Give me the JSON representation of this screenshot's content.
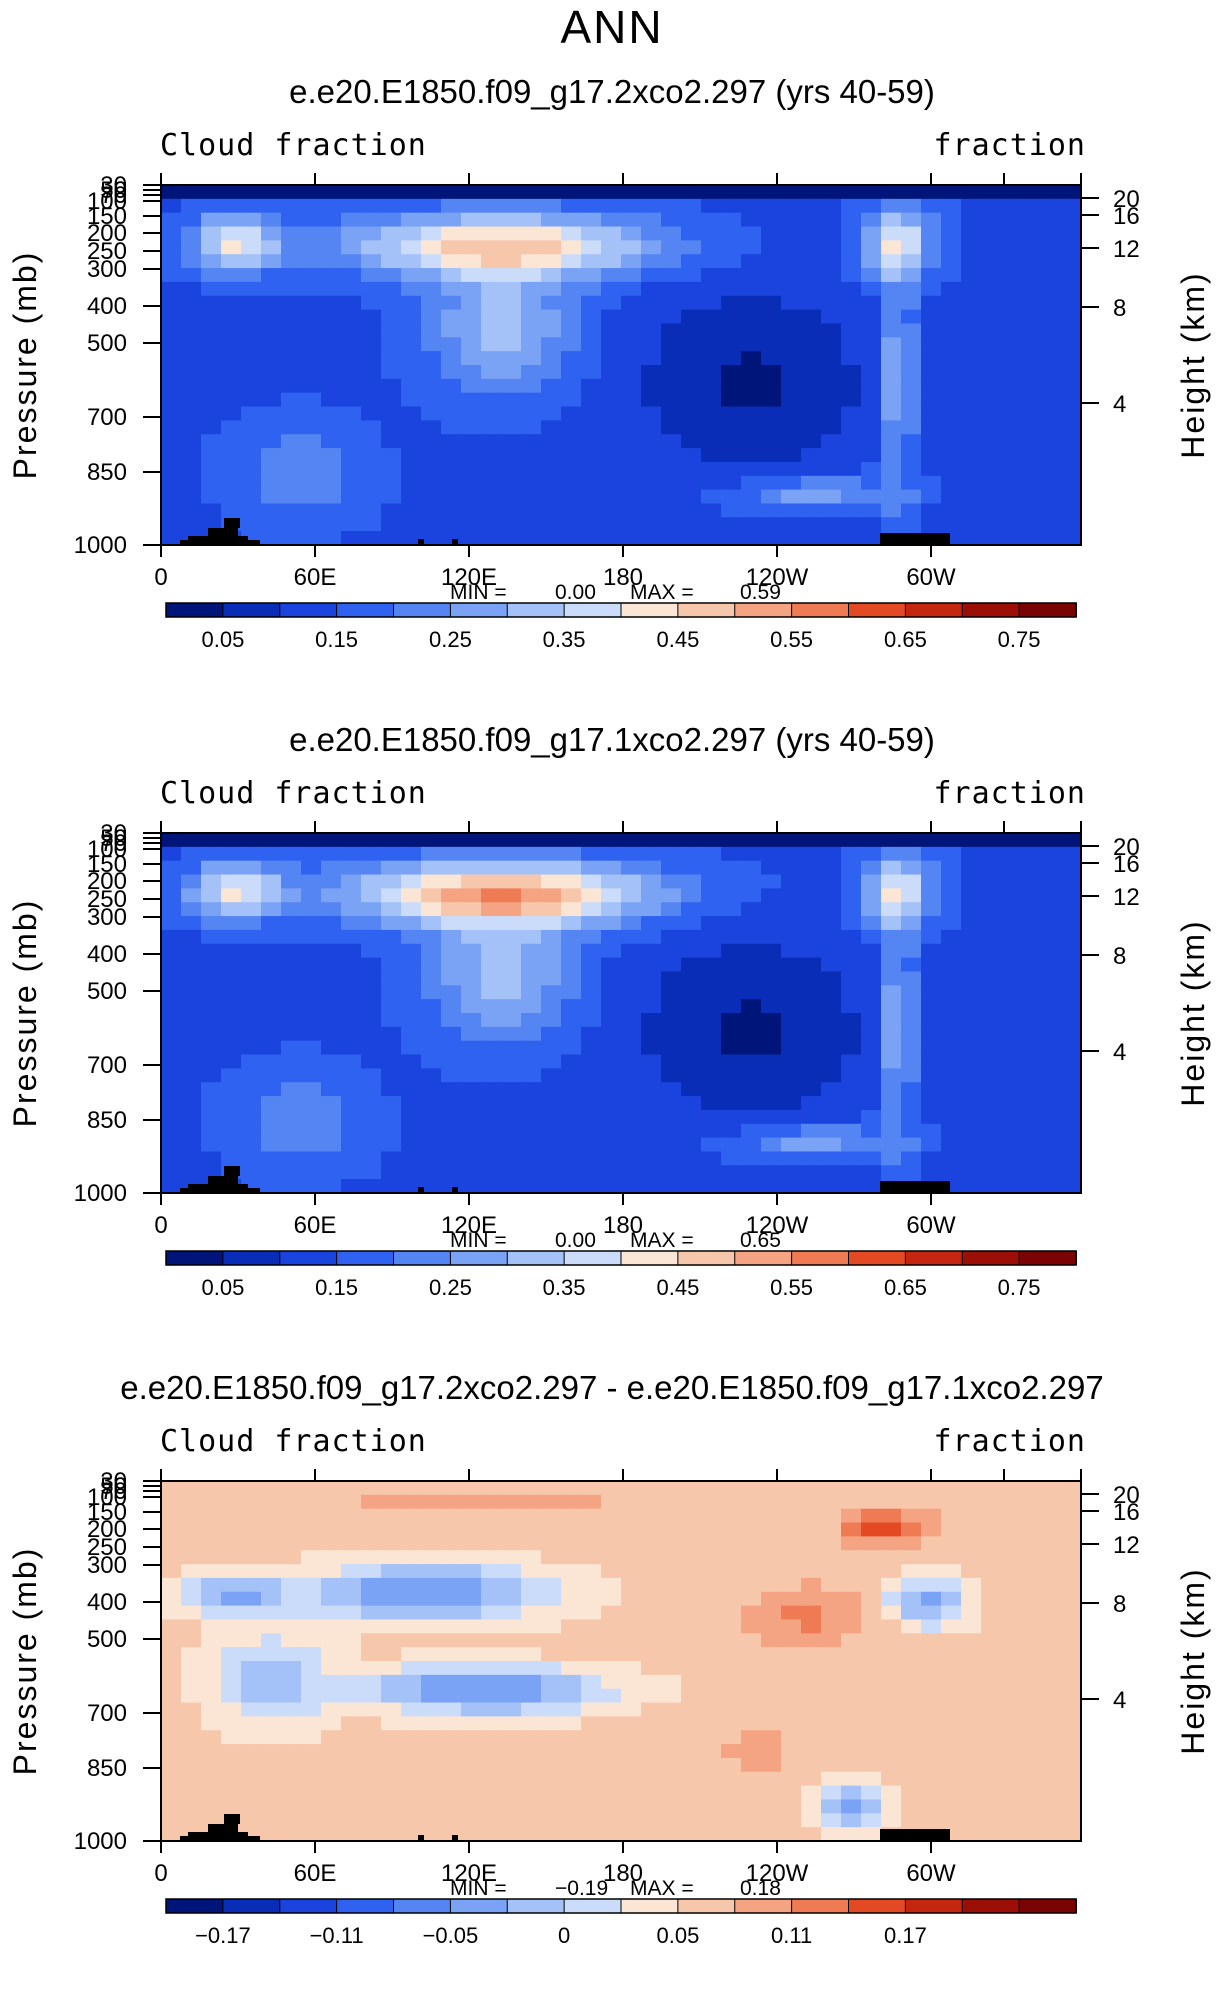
{
  "page": {
    "title": "ANN"
  },
  "chart_data": [
    {
      "type": "heatmap",
      "title": "e.e20.E1850.f09_g17.2xco2.297 (yrs 40-59)",
      "label_left": "Cloud fraction",
      "label_right": "fraction",
      "ylabel": "Pressure  (mb)",
      "y2label": "Height  (km)",
      "x_ticks": [
        "0",
        "60E",
        "120E",
        "180",
        "120W",
        "60W"
      ],
      "y_ticks": [
        "30",
        "50",
        "70",
        "100",
        "150",
        "200",
        "250",
        "300",
        "400",
        "500",
        "700",
        "850",
        "1000"
      ],
      "y2_ticks": [
        "20",
        "16",
        "12",
        "8",
        "4"
      ],
      "min_label": "MIN =",
      "min_value": "0.00",
      "max_label": "MAX =",
      "max_value": "0.59",
      "colorbar_labels": [
        "0.05",
        "0.15",
        "0.25",
        "0.35",
        "0.45",
        "0.55",
        "0.65",
        "0.75"
      ],
      "levels": [
        "0.05",
        "0.1",
        "0.15",
        "0.2",
        "0.25",
        "0.3",
        "0.35",
        "0.4",
        "0.45",
        "0.5",
        "0.55",
        "0.6",
        "0.65",
        "0.7",
        "0.75"
      ],
      "colors": [
        "#00157a",
        "#0a2db8",
        "#1a44dd",
        "#2f62f0",
        "#5585f2",
        "#7ba3f5",
        "#a4c2f8",
        "#cadcfa",
        "#fbe5d5",
        "#f7c7ab",
        "#f4a482",
        "#ef7b55",
        "#e34a23",
        "#c4260f",
        "#9c0f07",
        "#7a0303"
      ]
    },
    {
      "type": "heatmap",
      "title": "e.e20.E1850.f09_g17.1xco2.297 (yrs 40-59)",
      "label_left": "Cloud fraction",
      "label_right": "fraction",
      "ylabel": "Pressure  (mb)",
      "y2label": "Height  (km)",
      "x_ticks": [
        "0",
        "60E",
        "120E",
        "180",
        "120W",
        "60W"
      ],
      "y_ticks": [
        "30",
        "50",
        "70",
        "100",
        "150",
        "200",
        "250",
        "300",
        "400",
        "500",
        "700",
        "850",
        "1000"
      ],
      "y2_ticks": [
        "20",
        "16",
        "12",
        "8",
        "4"
      ],
      "min_label": "MIN =",
      "min_value": "0.00",
      "max_label": "MAX =",
      "max_value": "0.65",
      "colorbar_labels": [
        "0.05",
        "0.15",
        "0.25",
        "0.35",
        "0.45",
        "0.55",
        "0.65",
        "0.75"
      ],
      "levels": [
        "0.05",
        "0.1",
        "0.15",
        "0.2",
        "0.25",
        "0.3",
        "0.35",
        "0.4",
        "0.45",
        "0.5",
        "0.55",
        "0.6",
        "0.65",
        "0.7",
        "0.75"
      ],
      "colors": [
        "#00157a",
        "#0a2db8",
        "#1a44dd",
        "#2f62f0",
        "#5585f2",
        "#7ba3f5",
        "#a4c2f8",
        "#cadcfa",
        "#fbe5d5",
        "#f7c7ab",
        "#f4a482",
        "#ef7b55",
        "#e34a23",
        "#c4260f",
        "#9c0f07",
        "#7a0303"
      ]
    },
    {
      "type": "heatmap",
      "title": "e.e20.E1850.f09_g17.2xco2.297 - e.e20.E1850.f09_g17.1xco2.297",
      "label_left": "Cloud fraction",
      "label_right": "fraction",
      "ylabel": "Pressure  (mb)",
      "y2label": "Height  (km)",
      "x_ticks": [
        "0",
        "60E",
        "120E",
        "180",
        "120W",
        "60W"
      ],
      "y_ticks": [
        "30",
        "50",
        "70",
        "100",
        "150",
        "200",
        "250",
        "300",
        "400",
        "500",
        "700",
        "850",
        "1000"
      ],
      "y2_ticks": [
        "20",
        "16",
        "12",
        "8",
        "4"
      ],
      "min_label": "MIN =",
      "min_value": "−0.19",
      "max_label": "MAX =",
      "max_value": "0.18",
      "colorbar_labels": [
        "−0.17",
        "−0.11",
        "−0.05",
        "0",
        "0.05",
        "0.11",
        "0.17"
      ],
      "levels": [
        "-0.2",
        "-0.17",
        "-0.14",
        "-0.11",
        "-0.08",
        "-0.05",
        "-0.02",
        "0",
        "0.02",
        "0.05",
        "0.08",
        "0.11",
        "0.14",
        "0.17",
        "0.2"
      ],
      "colors": [
        "#00157a",
        "#0a2db8",
        "#1a44dd",
        "#2f62f0",
        "#5585f2",
        "#7ba3f5",
        "#a4c2f8",
        "#cadcfa",
        "#fbe5d5",
        "#f7c7ab",
        "#f4a482",
        "#ef7b55",
        "#e34a23",
        "#c4260f",
        "#9c0f07",
        "#7a0303"
      ]
    }
  ]
}
